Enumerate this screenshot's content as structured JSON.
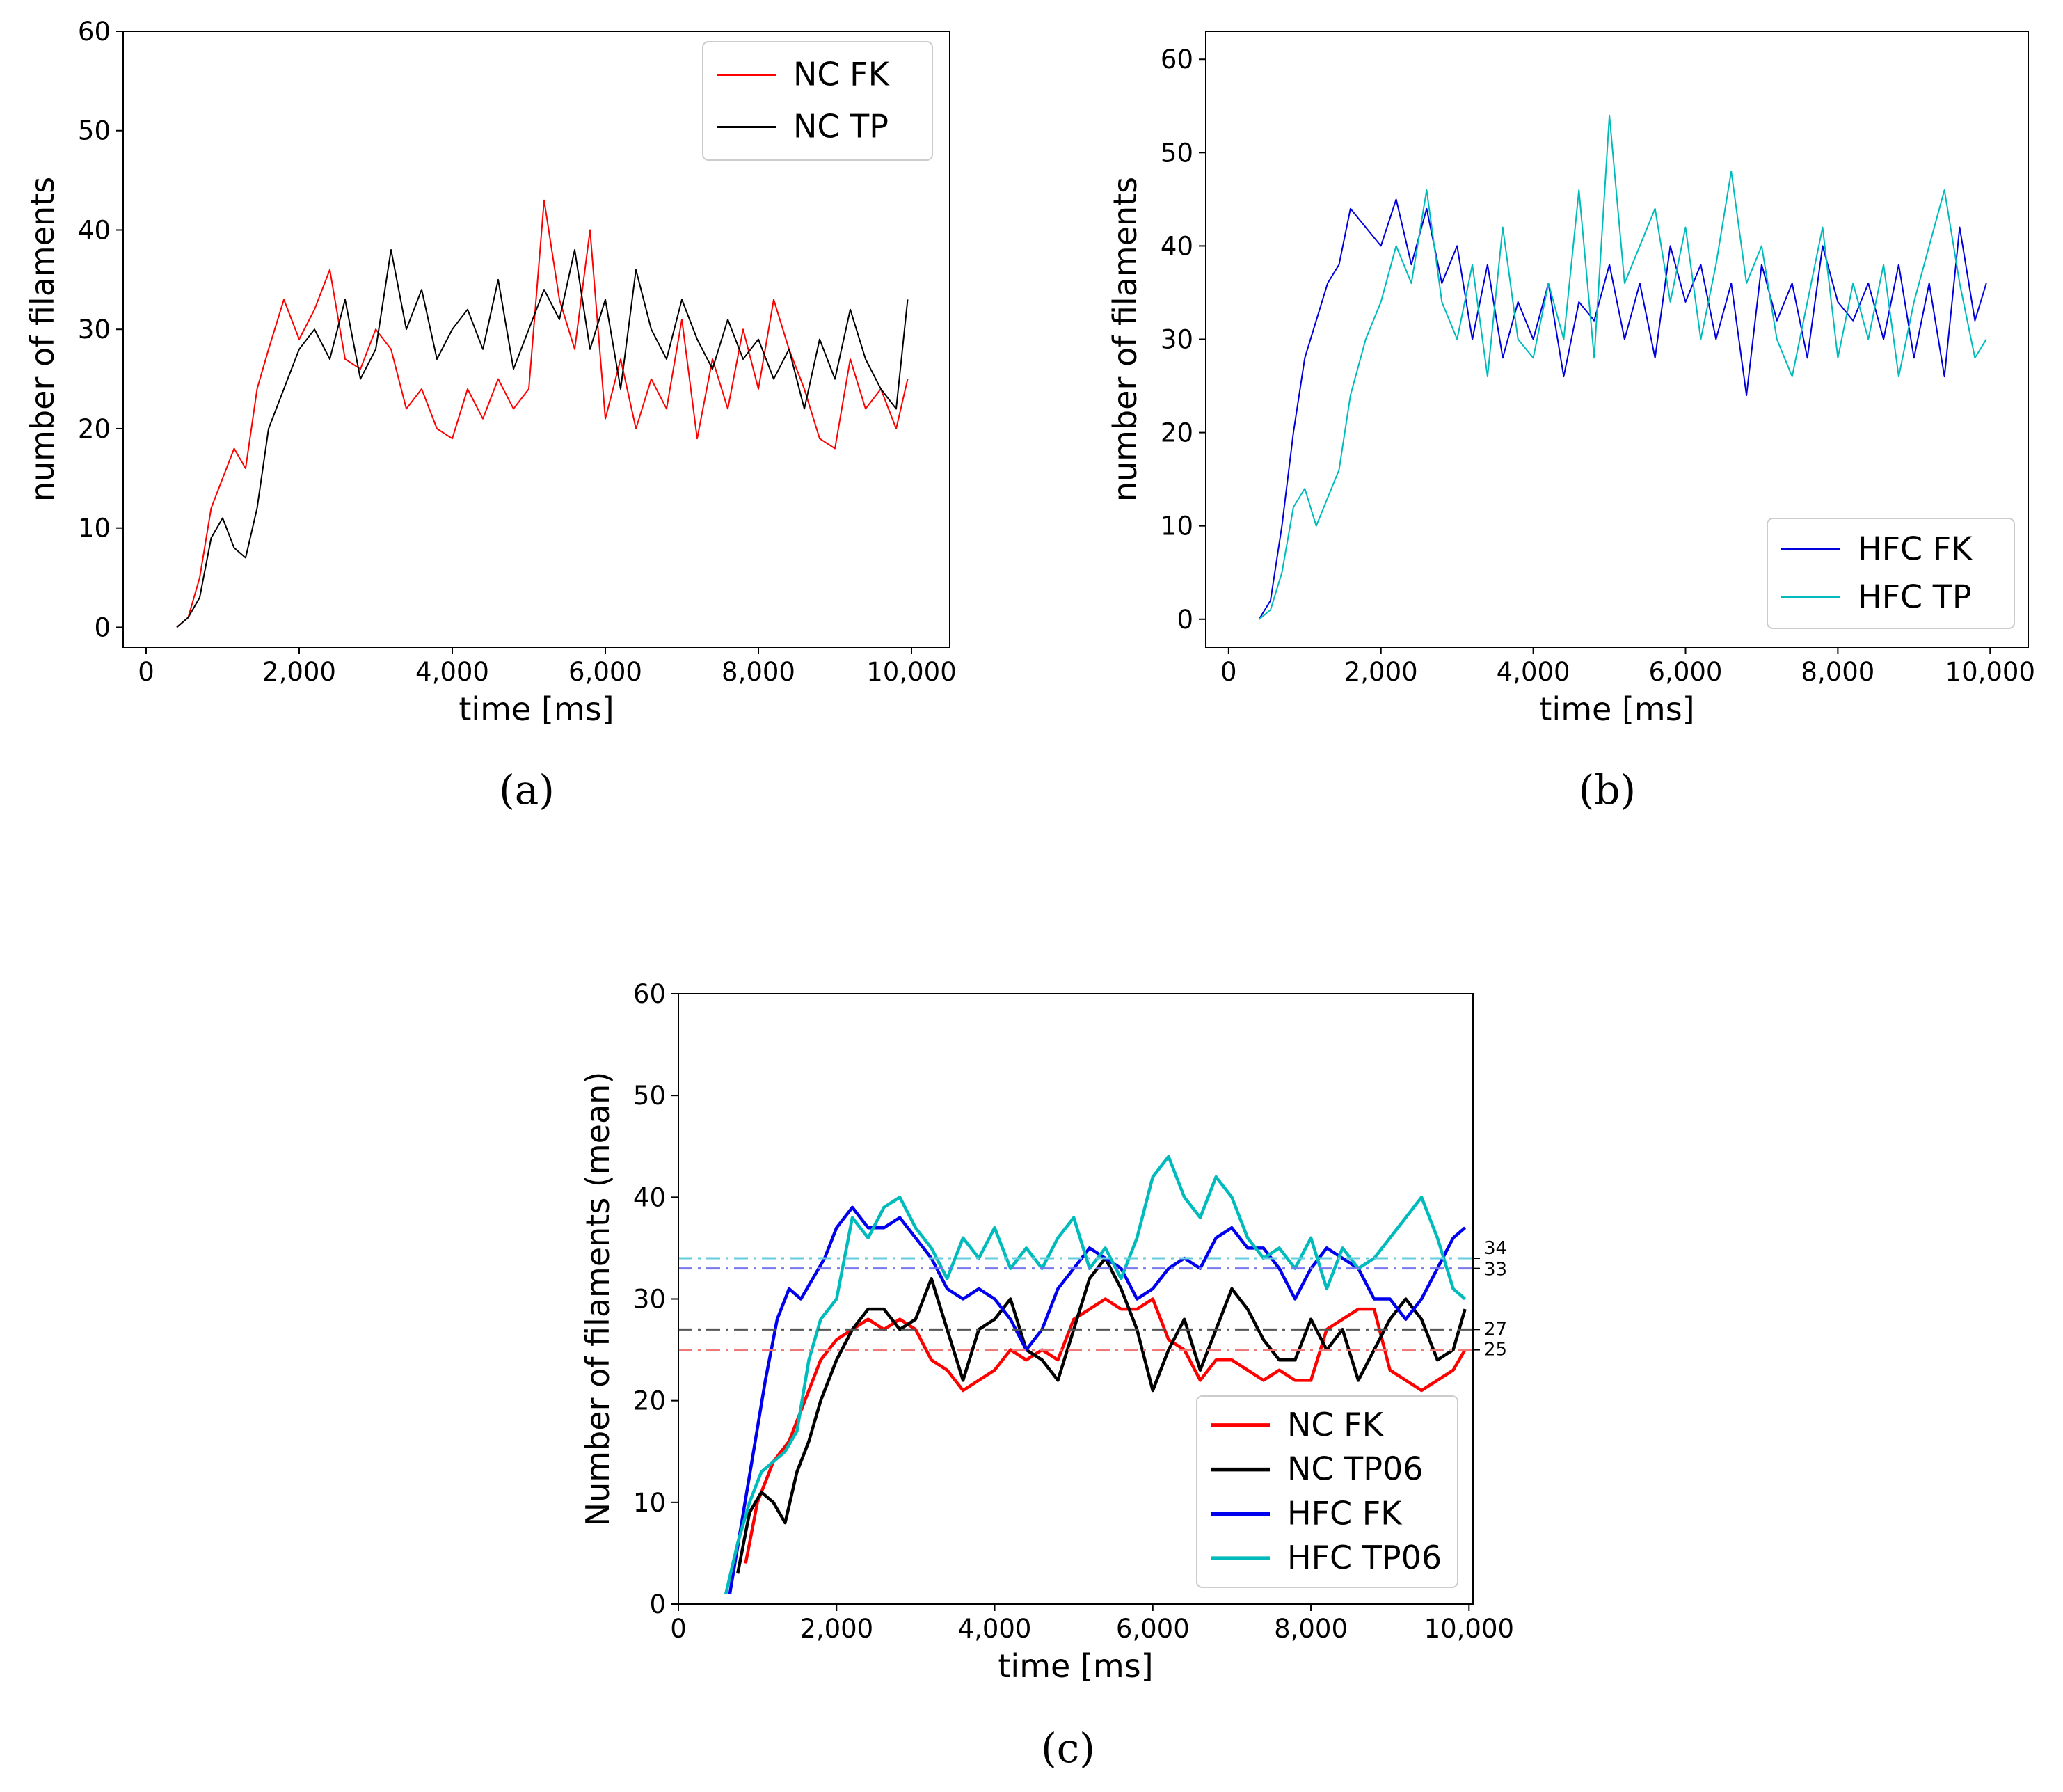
{
  "chart_data": [
    {
      "id": "a",
      "type": "line",
      "panel_label": "(a)",
      "xlabel": "time [ms]",
      "ylabel": "number of filaments",
      "xlim": [
        -300,
        10500
      ],
      "ylim": [
        -2,
        60
      ],
      "xticks": [
        0,
        2000,
        4000,
        6000,
        8000,
        10000
      ],
      "xtick_labels": [
        "0",
        "2,000",
        "4,000",
        "6,000",
        "8,000",
        "10,000"
      ],
      "yticks": [
        0,
        10,
        20,
        30,
        40,
        50,
        60
      ],
      "ytick_labels": [
        "0",
        "10",
        "20",
        "30",
        "40",
        "50",
        "60"
      ],
      "legend_position": "upper right",
      "series": [
        {
          "name": "NC FK",
          "color": "#ff0000",
          "x": [
            400,
            550,
            700,
            850,
            1000,
            1150,
            1300,
            1450,
            1600,
            1800,
            2000,
            2200,
            2400,
            2600,
            2800,
            3000,
            3200,
            3400,
            3600,
            3800,
            4000,
            4200,
            4400,
            4600,
            4800,
            5000,
            5200,
            5400,
            5600,
            5800,
            6000,
            6200,
            6400,
            6600,
            6800,
            7000,
            7200,
            7400,
            7600,
            7800,
            8000,
            8200,
            8400,
            8600,
            8800,
            9000,
            9200,
            9400,
            9600,
            9800,
            9950
          ],
          "values": [
            0,
            1,
            5,
            12,
            15,
            18,
            16,
            24,
            28,
            33,
            29,
            32,
            36,
            27,
            26,
            30,
            28,
            22,
            24,
            20,
            19,
            24,
            21,
            25,
            22,
            24,
            43,
            33,
            28,
            40,
            21,
            27,
            20,
            25,
            22,
            31,
            19,
            27,
            22,
            30,
            24,
            33,
            28,
            24,
            19,
            18,
            27,
            22,
            24,
            20,
            25
          ]
        },
        {
          "name": "NC TP",
          "color": "#000000",
          "x": [
            400,
            550,
            700,
            850,
            1000,
            1150,
            1300,
            1450,
            1600,
            1800,
            2000,
            2200,
            2400,
            2600,
            2800,
            3000,
            3200,
            3400,
            3600,
            3800,
            4000,
            4200,
            4400,
            4600,
            4800,
            5000,
            5200,
            5400,
            5600,
            5800,
            6000,
            6200,
            6400,
            6600,
            6800,
            7000,
            7200,
            7400,
            7600,
            7800,
            8000,
            8200,
            8400,
            8600,
            8800,
            9000,
            9200,
            9400,
            9600,
            9800,
            9950
          ],
          "values": [
            0,
            1,
            3,
            9,
            11,
            8,
            7,
            12,
            20,
            24,
            28,
            30,
            27,
            33,
            25,
            28,
            38,
            30,
            34,
            27,
            30,
            32,
            28,
            35,
            26,
            30,
            34,
            31,
            38,
            28,
            33,
            24,
            36,
            30,
            27,
            33,
            29,
            26,
            31,
            27,
            29,
            25,
            28,
            22,
            29,
            25,
            32,
            27,
            24,
            22,
            33
          ]
        }
      ]
    },
    {
      "id": "b",
      "type": "line",
      "panel_label": "(b)",
      "xlabel": "time [ms]",
      "ylabel": "number of filaments",
      "xlim": [
        -300,
        10500
      ],
      "ylim": [
        -3,
        63
      ],
      "xticks": [
        0,
        2000,
        4000,
        6000,
        8000,
        10000
      ],
      "xtick_labels": [
        "0",
        "2,000",
        "4,000",
        "6,000",
        "8,000",
        "10,000"
      ],
      "yticks": [
        0,
        10,
        20,
        30,
        40,
        50,
        60
      ],
      "ytick_labels": [
        "0",
        "10",
        "20",
        "30",
        "40",
        "50",
        "60"
      ],
      "legend_position": "lower right",
      "series": [
        {
          "name": "HFC FK",
          "color": "#0000dd",
          "x": [
            400,
            550,
            700,
            850,
            1000,
            1150,
            1300,
            1450,
            1600,
            1800,
            2000,
            2200,
            2400,
            2600,
            2800,
            3000,
            3200,
            3400,
            3600,
            3800,
            4000,
            4200,
            4400,
            4600,
            4800,
            5000,
            5200,
            5400,
            5600,
            5800,
            6000,
            6200,
            6400,
            6600,
            6800,
            7000,
            7200,
            7400,
            7600,
            7800,
            8000,
            8200,
            8400,
            8600,
            8800,
            9000,
            9200,
            9400,
            9600,
            9800,
            9950
          ],
          "values": [
            0,
            2,
            10,
            20,
            28,
            32,
            36,
            38,
            44,
            42,
            40,
            45,
            38,
            44,
            36,
            40,
            30,
            38,
            28,
            34,
            30,
            36,
            26,
            34,
            32,
            38,
            30,
            36,
            28,
            40,
            34,
            38,
            30,
            36,
            24,
            38,
            32,
            36,
            28,
            40,
            34,
            32,
            36,
            30,
            38,
            28,
            36,
            26,
            42,
            32,
            36
          ]
        },
        {
          "name": "HFC TP",
          "color": "#00bbbb",
          "x": [
            400,
            550,
            700,
            850,
            1000,
            1150,
            1300,
            1450,
            1600,
            1800,
            2000,
            2200,
            2400,
            2600,
            2800,
            3000,
            3200,
            3400,
            3600,
            3800,
            4000,
            4200,
            4400,
            4600,
            4800,
            5000,
            5200,
            5400,
            5600,
            5800,
            6000,
            6200,
            6400,
            6600,
            6800,
            7000,
            7200,
            7400,
            7600,
            7800,
            8000,
            8200,
            8400,
            8600,
            8800,
            9000,
            9200,
            9400,
            9600,
            9800,
            9950
          ],
          "values": [
            0,
            1,
            5,
            12,
            14,
            10,
            13,
            16,
            24,
            30,
            34,
            40,
            36,
            46,
            34,
            30,
            38,
            26,
            42,
            30,
            28,
            36,
            30,
            46,
            28,
            54,
            36,
            40,
            44,
            34,
            42,
            30,
            38,
            48,
            36,
            40,
            30,
            26,
            34,
            42,
            28,
            36,
            30,
            38,
            26,
            34,
            40,
            46,
            36,
            28,
            30
          ]
        }
      ]
    },
    {
      "id": "c",
      "type": "line",
      "panel_label": "(c)",
      "xlabel": "time [ms]",
      "ylabel": "Number of filaments (mean)",
      "xlim": [
        0,
        10050
      ],
      "ylim": [
        0,
        60
      ],
      "xticks": [
        0,
        2000,
        4000,
        6000,
        8000,
        10000
      ],
      "xtick_labels": [
        "0",
        "2,000",
        "4,000",
        "6,000",
        "8,000",
        "10,000"
      ],
      "yticks": [
        0,
        10,
        20,
        30,
        40,
        50,
        60
      ],
      "ytick_labels": [
        "0",
        "10",
        "20",
        "30",
        "40",
        "50",
        "60"
      ],
      "legend_position": "lower right",
      "series": [
        {
          "name": "NC FK",
          "color": "#ff0000",
          "x": [
            850,
            1000,
            1200,
            1400,
            1600,
            1800,
            2000,
            2200,
            2400,
            2600,
            2800,
            3000,
            3200,
            3400,
            3600,
            3800,
            4000,
            4200,
            4400,
            4600,
            4800,
            5000,
            5200,
            5400,
            5600,
            5800,
            6000,
            6200,
            6400,
            6600,
            6800,
            7000,
            7200,
            7400,
            7600,
            7800,
            8000,
            8200,
            8400,
            8600,
            8800,
            9000,
            9200,
            9400,
            9600,
            9800,
            9950
          ],
          "values": [
            4,
            10,
            14,
            16,
            20,
            24,
            26,
            27,
            28,
            27,
            28,
            27,
            24,
            23,
            21,
            22,
            23,
            25,
            24,
            25,
            24,
            28,
            29,
            30,
            29,
            29,
            30,
            26,
            25,
            22,
            24,
            24,
            23,
            22,
            23,
            22,
            22,
            27,
            28,
            29,
            29,
            23,
            22,
            21,
            22,
            23,
            25
          ]
        },
        {
          "name": "NC TP06",
          "color": "#000000",
          "x": [
            750,
            900,
            1050,
            1200,
            1350,
            1500,
            1650,
            1800,
            2000,
            2200,
            2400,
            2600,
            2800,
            3000,
            3200,
            3400,
            3600,
            3800,
            4000,
            4200,
            4400,
            4600,
            4800,
            5000,
            5200,
            5400,
            5600,
            5800,
            6000,
            6200,
            6400,
            6600,
            6800,
            7000,
            7200,
            7400,
            7600,
            7800,
            8000,
            8200,
            8400,
            8600,
            8800,
            9000,
            9200,
            9400,
            9600,
            9800,
            9950
          ],
          "values": [
            3,
            9,
            11,
            10,
            8,
            13,
            16,
            20,
            24,
            27,
            29,
            29,
            27,
            28,
            32,
            27,
            22,
            27,
            28,
            30,
            25,
            24,
            22,
            27,
            32,
            34,
            31,
            27,
            21,
            25,
            28,
            23,
            27,
            31,
            29,
            26,
            24,
            24,
            28,
            25,
            27,
            22,
            25,
            28,
            30,
            28,
            24,
            25,
            29
          ]
        },
        {
          "name": "HFC FK",
          "color": "#0000ee",
          "x": [
            650,
            800,
            950,
            1100,
            1250,
            1400,
            1550,
            1700,
            1850,
            2000,
            2200,
            2400,
            2600,
            2800,
            3000,
            3200,
            3400,
            3600,
            3800,
            4000,
            4200,
            4400,
            4600,
            4800,
            5000,
            5200,
            5400,
            5600,
            5800,
            6000,
            6200,
            6400,
            6600,
            6800,
            7000,
            7200,
            7400,
            7600,
            7800,
            8000,
            8200,
            8400,
            8600,
            8800,
            9000,
            9200,
            9400,
            9600,
            9800,
            9950
          ],
          "values": [
            1,
            8,
            15,
            22,
            28,
            31,
            30,
            32,
            34,
            37,
            39,
            37,
            37,
            38,
            36,
            34,
            31,
            30,
            31,
            30,
            28,
            25,
            27,
            31,
            33,
            35,
            34,
            33,
            30,
            31,
            33,
            34,
            33,
            36,
            37,
            35,
            35,
            33,
            30,
            33,
            35,
            34,
            33,
            30,
            30,
            28,
            30,
            33,
            36,
            37
          ]
        },
        {
          "name": "HFC TP06",
          "color": "#00bbbb",
          "x": [
            600,
            750,
            900,
            1050,
            1200,
            1350,
            1500,
            1650,
            1800,
            2000,
            2200,
            2400,
            2600,
            2800,
            3000,
            3200,
            3400,
            3600,
            3800,
            4000,
            4200,
            4400,
            4600,
            4800,
            5000,
            5200,
            5400,
            5600,
            5800,
            6000,
            6200,
            6400,
            6600,
            6800,
            7000,
            7200,
            7400,
            7600,
            7800,
            8000,
            8200,
            8400,
            8600,
            8800,
            9000,
            9200,
            9400,
            9600,
            9800,
            9950
          ],
          "values": [
            1,
            6,
            10,
            13,
            14,
            15,
            17,
            24,
            28,
            30,
            38,
            36,
            39,
            40,
            37,
            35,
            32,
            36,
            34,
            37,
            33,
            35,
            33,
            36,
            38,
            33,
            35,
            32,
            36,
            42,
            44,
            40,
            38,
            42,
            40,
            36,
            34,
            35,
            33,
            36,
            31,
            35,
            33,
            34,
            36,
            38,
            40,
            36,
            31,
            30
          ]
        }
      ],
      "hlines": [
        {
          "label": "34",
          "value": 34,
          "color": "#66ccdd"
        },
        {
          "label": "33",
          "value": 33,
          "color": "#7777ee"
        },
        {
          "label": "27",
          "value": 27,
          "color": "#555555"
        },
        {
          "label": "25",
          "value": 25,
          "color": "#ee7777"
        }
      ]
    }
  ]
}
